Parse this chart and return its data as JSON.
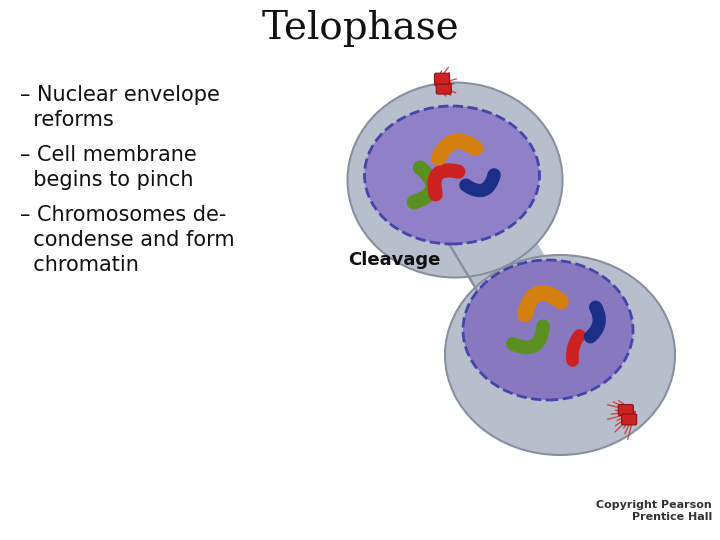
{
  "title": "Telophase",
  "title_fontsize": 28,
  "bg_color": "#ffffff",
  "cell_outer_color": "#b8bfcc",
  "cell_outer_edge": "#8890a0",
  "nucleus_color": "#8878c0",
  "nucleus_color2": "#9080c8",
  "nucleus_edge": "#4444aa",
  "text_color": "#111111",
  "cleavage_label": "Cleavage",
  "cleavage_fontsize": 13,
  "copyright": "Copyright Pearson\nPrentice Hall",
  "copyright_fontsize": 8,
  "bullet1_line1": "– Nuclear envelope",
  "bullet1_line2": "  reforms",
  "bullet2_line1": "– Cell membrane",
  "bullet2_line2": "  begins to pinch",
  "bullet3_line1": "– Chromosomes de-",
  "bullet3_line2": "  condense and form",
  "bullet3_line3": "  chromatin",
  "bullet_fontsize": 15,
  "spindle_color": "#dd3333",
  "centriole_color": "#cc2222"
}
